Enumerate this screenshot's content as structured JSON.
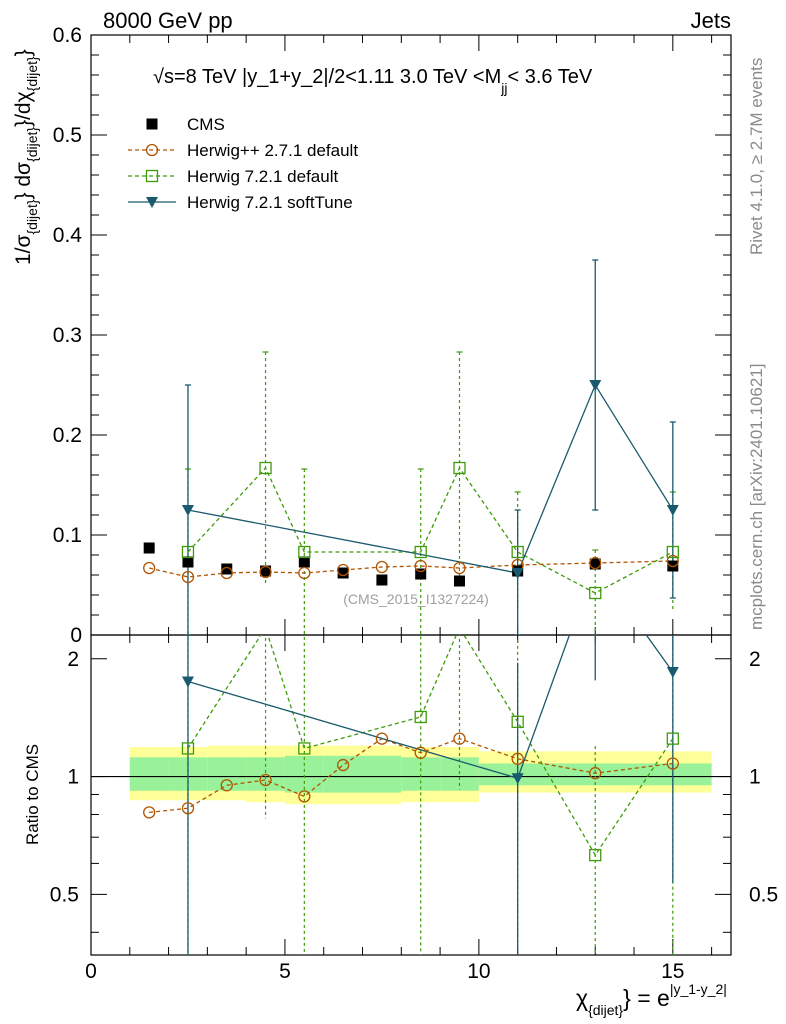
{
  "header": {
    "left": "8000 GeV pp",
    "right": "Jets"
  },
  "side_labels": {
    "rivet": "Rivet 4.1.0, ≥ 2.7M events",
    "mcplots": "mcplots.cern.ch [arXiv:2401.10621]"
  },
  "chart_data": {
    "type": "scatter",
    "title": "√s=8 TeV |y_1+y_2|/2<1.11 3.0 TeV <M_jj< 3.6 TeV",
    "title_parts": {
      "energy": "√s=8 TeV |y_1+y_2|/2<1.11 3.0 TeV <M",
      "sub": "jj",
      "tail": "< 3.6 TeV"
    },
    "watermark": "(CMS_2015_I1327224)",
    "xlabel": {
      "main": "χ",
      "sub": "{dijet}",
      "eq": "} = e",
      "sup": "|y_1-y_2|"
    },
    "ylabel": {
      "a": "1/σ",
      "b": "{dijet}",
      "c": "} dσ",
      "d": "{dijet}",
      "e": "}/dχ",
      "f": "{dijet}",
      "g": "}"
    },
    "ratio_ylabel": "Ratio to CMS",
    "xlim": [
      0,
      16.5
    ],
    "ylim": [
      0,
      0.6
    ],
    "ratio_ylim": [
      0.35,
      2.3
    ],
    "x_ticks": [
      "0",
      "5",
      "10",
      "15"
    ],
    "y_ticks": [
      "0",
      "0.1",
      "0.2",
      "0.3",
      "0.4",
      "0.5",
      "0.6"
    ],
    "ratio_ticks": [
      "0.5",
      "1",
      "2"
    ],
    "legend": [
      {
        "label": "CMS",
        "color": "#000000",
        "marker": "square-filled"
      },
      {
        "label": "Herwig++ 2.7.1 default",
        "color": "#b25400",
        "marker": "circle-open"
      },
      {
        "label": "Herwig 7.2.1 default",
        "color": "#3e9b0a",
        "marker": "square-open"
      },
      {
        "label": "Herwig 7.2.1 softTune",
        "color": "#1a5a6e",
        "marker": "triangle-down"
      }
    ],
    "series": [
      {
        "name": "CMS",
        "x": [
          1.5,
          2.5,
          3.5,
          4.5,
          5.5,
          6.5,
          7.5,
          8.5,
          9.5,
          11.0,
          13.0,
          15.0
        ],
        "values": [
          0.087,
          0.073,
          0.066,
          0.064,
          0.073,
          0.062,
          0.055,
          0.061,
          0.054,
          0.064,
          0.071,
          0.069
        ]
      },
      {
        "name": "Herwig++ 2.7.1 default",
        "x": [
          1.5,
          2.5,
          3.5,
          4.5,
          5.5,
          6.5,
          7.5,
          8.5,
          9.5,
          11.0,
          13.0,
          15.0
        ],
        "values": [
          0.067,
          0.058,
          0.062,
          0.063,
          0.062,
          0.065,
          0.068,
          0.069,
          0.067,
          0.07,
          0.072,
          0.074
        ],
        "ratio": [
          0.81,
          0.83,
          0.95,
          0.98,
          0.89,
          1.07,
          1.25,
          1.15,
          1.25,
          1.11,
          1.02,
          1.08
        ]
      },
      {
        "name": "Herwig 7.2.1 default",
        "x": [
          2.5,
          4.5,
          5.5,
          8.5,
          9.5,
          11.0,
          13.0,
          15.0
        ],
        "values": [
          0.083,
          0.167,
          0.083,
          0.083,
          0.167,
          0.083,
          0.042,
          0.083
        ],
        "ratio": [
          1.18,
          2.4,
          1.18,
          1.42,
          2.4,
          1.38,
          0.63,
          1.25
        ],
        "err_hi": [
          0.166,
          0.283,
          0.166,
          0.166,
          0.283,
          0.143,
          0.085,
          0.143
        ],
        "err_lo": [
          0.0,
          0.05,
          0.0,
          0.0,
          0.05,
          0.024,
          0.0,
          0.024
        ]
      },
      {
        "name": "Herwig 7.2.1 softTune",
        "x": [
          2.5,
          11.0,
          13.0,
          15.0
        ],
        "values": [
          0.125,
          0.062,
          0.25,
          0.125
        ],
        "ratio": [
          1.75,
          0.99,
          3.5,
          1.85
        ],
        "err_hi": [
          0.25,
          0.125,
          0.375,
          0.213
        ],
        "err_lo": [
          0.0,
          0.0,
          0.125,
          0.037
        ]
      }
    ],
    "ratio_bands": {
      "bins": [
        [
          1,
          2
        ],
        [
          2,
          3
        ],
        [
          3,
          4
        ],
        [
          4,
          5
        ],
        [
          5,
          6
        ],
        [
          6,
          7
        ],
        [
          7,
          8
        ],
        [
          8,
          9
        ],
        [
          9,
          10
        ],
        [
          10,
          12
        ],
        [
          12,
          14
        ],
        [
          14,
          16
        ]
      ],
      "green": [
        [
          0.92,
          1.12
        ],
        [
          0.92,
          1.12
        ],
        [
          0.92,
          1.12
        ],
        [
          0.92,
          1.12
        ],
        [
          0.91,
          1.13
        ],
        [
          0.91,
          1.13
        ],
        [
          0.91,
          1.13
        ],
        [
          0.92,
          1.12
        ],
        [
          0.92,
          1.12
        ],
        [
          0.95,
          1.08
        ],
        [
          0.95,
          1.08
        ],
        [
          0.95,
          1.08
        ]
      ],
      "yellow": [
        [
          0.87,
          1.19
        ],
        [
          0.87,
          1.19
        ],
        [
          0.87,
          1.2
        ],
        [
          0.86,
          1.2
        ],
        [
          0.85,
          1.2
        ],
        [
          0.85,
          1.2
        ],
        [
          0.85,
          1.2
        ],
        [
          0.86,
          1.19
        ],
        [
          0.86,
          1.19
        ],
        [
          0.91,
          1.16
        ],
        [
          0.91,
          1.16
        ],
        [
          0.91,
          1.16
        ]
      ]
    }
  }
}
